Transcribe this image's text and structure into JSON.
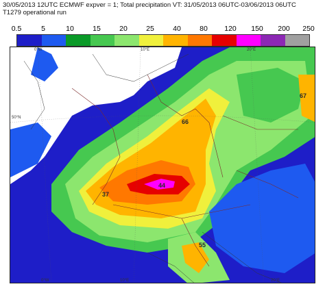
{
  "header": {
    "line1": "30/05/2013 12UTC ECMWF expver = 1; Total precipitation VT: 31/05/2013 06UTC-03/06/2013 06UTC",
    "line2": "T1279 operational run"
  },
  "legend": {
    "labels": [
      "0.5",
      "5",
      "10",
      "15",
      "20",
      "25",
      "40",
      "80",
      "120",
      "150",
      "200",
      "250"
    ],
    "colors": [
      "#1e1ec8",
      "#1e5af0",
      "#0a9a28",
      "#46c850",
      "#8ce66e",
      "#f0f03c",
      "#ffb400",
      "#ff7800",
      "#e60000",
      "#ff00ff",
      "#8c28b4",
      "#a0a0a0"
    ]
  },
  "map": {
    "labels": [
      {
        "id": "max-44",
        "text": "44"
      },
      {
        "id": "max-66",
        "text": "66"
      },
      {
        "id": "max-67",
        "text": "67"
      },
      {
        "id": "max-55",
        "text": "55"
      },
      {
        "id": "max-37",
        "text": "37"
      }
    ],
    "coords": [
      "0°W",
      "10°E",
      "20°E",
      "50°N",
      "0°W",
      "10°E",
      "20°E"
    ]
  }
}
